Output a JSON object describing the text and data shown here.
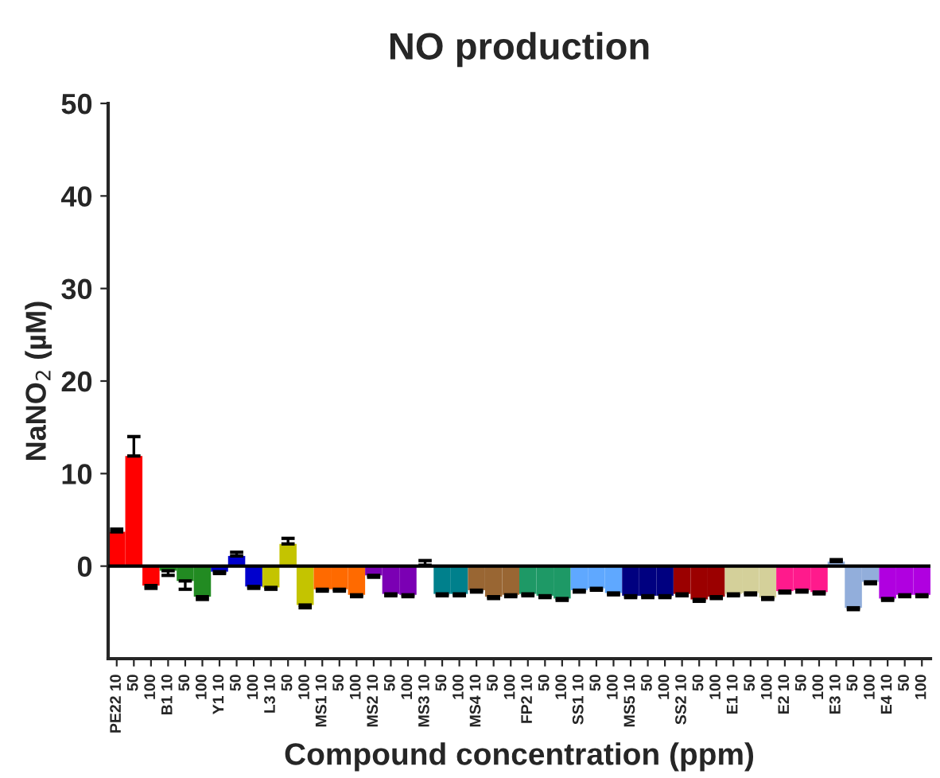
{
  "chart_data": {
    "type": "bar",
    "title": "NO production",
    "xlabel": "Compound concentration (ppm)",
    "ylabel": "NaNO$_{2}$ (µM)",
    "categories": [
      "PE22 10",
      "50",
      "100",
      "B1 10",
      "50",
      "100",
      "Y1 10",
      "50",
      "100",
      "L3 10",
      "50",
      "100",
      "MS1 10",
      "50",
      "100",
      "MS2 10",
      "50",
      "100",
      "MS3 10",
      "50",
      "100",
      "MS4 10",
      "50",
      "100",
      "FP2 10",
      "50",
      "100",
      "SS1 10",
      "50",
      "100",
      "MS5 10",
      "50",
      "100",
      "SS2 10",
      "50",
      "100",
      "E1 10",
      "50",
      "100",
      "E2 10",
      "50",
      "100",
      "E3 10",
      "50",
      "100",
      "E4 10",
      "50",
      "100"
    ],
    "values": [
      3.7,
      11.9,
      -2.1,
      -0.5,
      -1.6,
      -3.3,
      -0.6,
      1.1,
      -2.2,
      -2.3,
      2.4,
      -4.2,
      -2.5,
      -2.5,
      -3.1,
      -1.0,
      -3.0,
      -3.1,
      0.1,
      -3.0,
      -3.0,
      -2.6,
      -3.3,
      -3.1,
      -3.0,
      -3.2,
      -3.5,
      -2.6,
      -2.4,
      -2.9,
      -3.2,
      -3.2,
      -3.2,
      -3.0,
      -3.6,
      -3.3,
      -3.0,
      -2.9,
      -3.4,
      -2.7,
      -2.6,
      -2.8,
      0.5,
      -4.5,
      -1.7,
      -3.5,
      -3.1,
      -3.1
    ],
    "errors": [
      0.3,
      2.1,
      0.3,
      0.5,
      0.9,
      0.3,
      0.2,
      0.4,
      0.2,
      0.2,
      0.6,
      0.3,
      0.2,
      0.2,
      0.2,
      0.2,
      0.2,
      0.2,
      0.5,
      0.2,
      0.2,
      0.2,
      0.2,
      0.2,
      0.2,
      0.2,
      0.2,
      0.2,
      0.2,
      0.2,
      0.2,
      0.2,
      0.2,
      0.2,
      0.2,
      0.2,
      0.2,
      0.2,
      0.2,
      0.2,
      0.2,
      0.2,
      0.2,
      0.2,
      0.2,
      0.2,
      0.2,
      0.2
    ],
    "colors": [
      "#ff0000",
      "#ff0000",
      "#ff0000",
      "#228b22",
      "#228b22",
      "#228b22",
      "#0000cd",
      "#0000cd",
      "#0000cd",
      "#c4c400",
      "#c4c400",
      "#c4c400",
      "#ff6a00",
      "#ff6a00",
      "#ff6a00",
      "#7b00b4",
      "#7b00b4",
      "#7b00b4",
      "#00808c",
      "#00808c",
      "#00808c",
      "#996633",
      "#996633",
      "#996633",
      "#1e9966",
      "#1e9966",
      "#1e9966",
      "#5fa8ff",
      "#5fa8ff",
      "#5fa8ff",
      "#000080",
      "#000080",
      "#000080",
      "#9b0000",
      "#9b0000",
      "#9b0000",
      "#d4d09a",
      "#d4d09a",
      "#d4d09a",
      "#ff1a8c",
      "#ff1a8c",
      "#ff1a8c",
      "#92aedb",
      "#92aedb",
      "#92aedb",
      "#b000e0",
      "#b000e0",
      "#b000e0"
    ],
    "ylim": [
      -10,
      50
    ],
    "yticks": [
      0,
      10,
      20,
      30,
      40,
      50
    ],
    "ref_lines": [
      {
        "axis": "y",
        "value": 0,
        "color": "#000000"
      }
    ],
    "grid": false,
    "legend": false
  }
}
